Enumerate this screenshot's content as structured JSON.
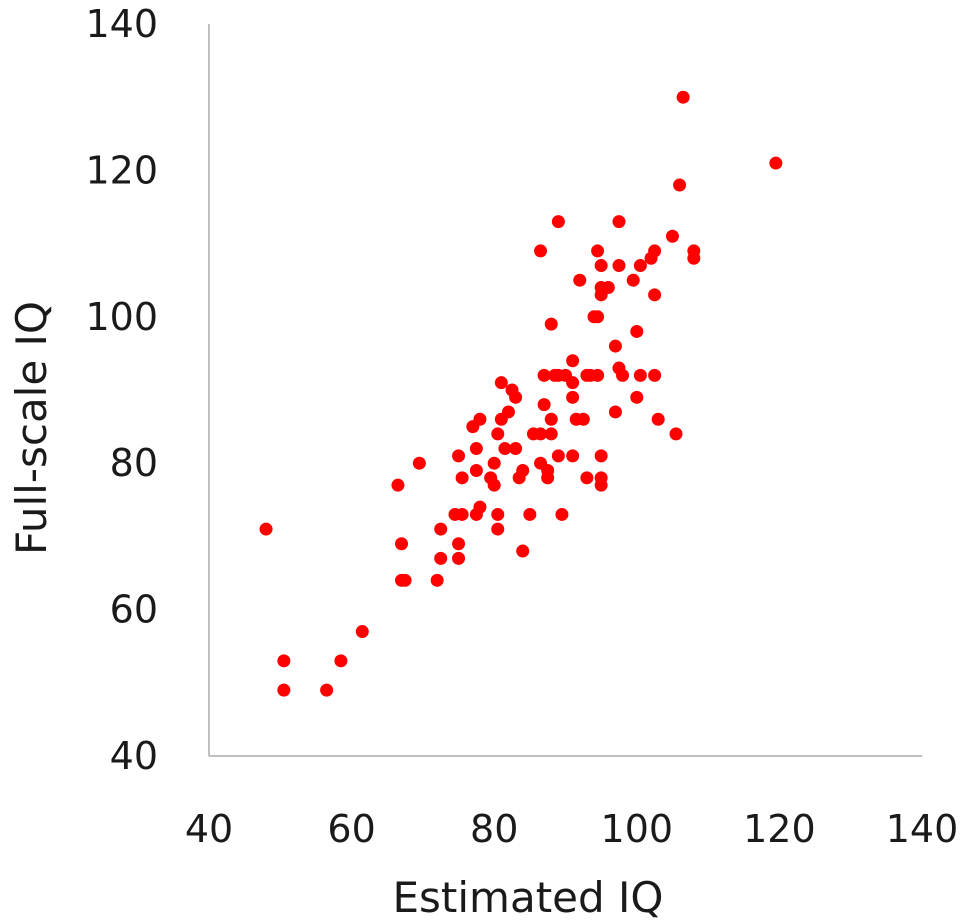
{
  "chart_data": {
    "type": "scatter",
    "title": "",
    "xlabel": "Estimated IQ",
    "ylabel": "Full-scale IQ",
    "xlim": [
      40,
      140
    ],
    "ylim": [
      40,
      140
    ],
    "xticks": [
      40,
      60,
      80,
      100,
      120,
      140
    ],
    "yticks": [
      40,
      60,
      80,
      100,
      120,
      140
    ],
    "grid": false,
    "legend": "none",
    "colors": {
      "marker": "#ff0000",
      "axis": "#bfbfbf",
      "text": "#1a1a1a"
    },
    "series": [
      {
        "points": [
          [
            48,
            71
          ],
          [
            50.5,
            53
          ],
          [
            50.5,
            49
          ],
          [
            56.5,
            49
          ],
          [
            58.5,
            53
          ],
          [
            61.5,
            57
          ],
          [
            66.5,
            77
          ],
          [
            67,
            69
          ],
          [
            67,
            64
          ],
          [
            67.5,
            64
          ],
          [
            69.5,
            80
          ],
          [
            72,
            64
          ],
          [
            72.5,
            71
          ],
          [
            72.5,
            67
          ],
          [
            74.5,
            73
          ],
          [
            75,
            81
          ],
          [
            75,
            69
          ],
          [
            75,
            67
          ],
          [
            75.5,
            73
          ],
          [
            75.5,
            78
          ],
          [
            77,
            85
          ],
          [
            77.5,
            82
          ],
          [
            77.5,
            73
          ],
          [
            77.5,
            79
          ],
          [
            78,
            86
          ],
          [
            78,
            74
          ],
          [
            79.5,
            78
          ],
          [
            80,
            80
          ],
          [
            80,
            77
          ],
          [
            80.5,
            84
          ],
          [
            80.5,
            73
          ],
          [
            80.5,
            71
          ],
          [
            81,
            91
          ],
          [
            81,
            86
          ],
          [
            81.5,
            82
          ],
          [
            82,
            87
          ],
          [
            82.5,
            90
          ],
          [
            83,
            89
          ],
          [
            83,
            82
          ],
          [
            83.5,
            78
          ],
          [
            84,
            79
          ],
          [
            84,
            68
          ],
          [
            85,
            73
          ],
          [
            85.5,
            84
          ],
          [
            86.5,
            84
          ],
          [
            86.5,
            80
          ],
          [
            86.5,
            109
          ],
          [
            87,
            92
          ],
          [
            87,
            88
          ],
          [
            87.5,
            79
          ],
          [
            87.5,
            78
          ],
          [
            88,
            86
          ],
          [
            88,
            84
          ],
          [
            88,
            99
          ],
          [
            88.5,
            92
          ],
          [
            89,
            92
          ],
          [
            89,
            113
          ],
          [
            89,
            81
          ],
          [
            89.5,
            73
          ],
          [
            90,
            92
          ],
          [
            91,
            81
          ],
          [
            91,
            94
          ],
          [
            91,
            91
          ],
          [
            91,
            89
          ],
          [
            91.5,
            86
          ],
          [
            92,
            105
          ],
          [
            92.5,
            86
          ],
          [
            93,
            92
          ],
          [
            93,
            78
          ],
          [
            93.5,
            92
          ],
          [
            94,
            100
          ],
          [
            94.5,
            109
          ],
          [
            94.5,
            100
          ],
          [
            94.5,
            92
          ],
          [
            95,
            104
          ],
          [
            95,
            103
          ],
          [
            95,
            107
          ],
          [
            95,
            81
          ],
          [
            95,
            78
          ],
          [
            95,
            77
          ],
          [
            96,
            104
          ],
          [
            97,
            96
          ],
          [
            97,
            87
          ],
          [
            97.5,
            93
          ],
          [
            97.5,
            107
          ],
          [
            97.5,
            113
          ],
          [
            98,
            92
          ],
          [
            99.5,
            105
          ],
          [
            100,
            89
          ],
          [
            100,
            98
          ],
          [
            100.5,
            92
          ],
          [
            100.5,
            107
          ],
          [
            102,
            108
          ],
          [
            102.5,
            109
          ],
          [
            102.5,
            103
          ],
          [
            102.5,
            92
          ],
          [
            103,
            86
          ],
          [
            105,
            111
          ],
          [
            105.5,
            84
          ],
          [
            106,
            118
          ],
          [
            106.5,
            130
          ],
          [
            108,
            109
          ],
          [
            108,
            108
          ],
          [
            119.5,
            121
          ]
        ]
      }
    ]
  }
}
